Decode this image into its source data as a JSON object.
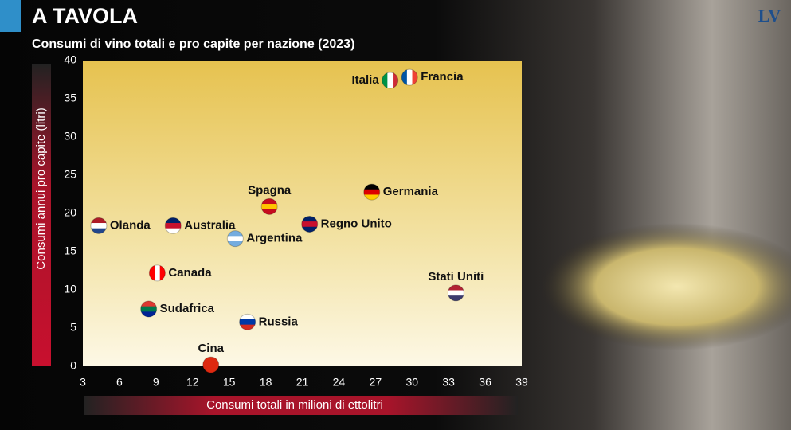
{
  "chart_data": {
    "type": "scatter",
    "title": "A TAVOLA",
    "subtitle": "Consumi di vino totali e pro capite per nazione (2023)",
    "logo": "LV",
    "x_label": "Consumi totali in milioni di ettolitri",
    "y_label": "Consumi annui pro capite (litri)",
    "xlim": [
      3,
      39
    ],
    "ylim": [
      0,
      40
    ],
    "xticks": [
      3,
      6,
      9,
      12,
      15,
      18,
      21,
      24,
      27,
      30,
      33,
      36,
      39
    ],
    "yticks": [
      0,
      5,
      10,
      15,
      20,
      25,
      30,
      35,
      40
    ],
    "grid": false,
    "points": [
      {
        "name": "Olanda",
        "x": 4.3,
        "y": 18.4,
        "colors": [
          "#ae1c28",
          "#ffffff",
          "#21468b"
        ],
        "stripes": "h",
        "label_position": "right"
      },
      {
        "name": "Australia",
        "x": 10.4,
        "y": 18.4,
        "colors": [
          "#012169",
          "#c8102e",
          "#ffffff"
        ],
        "stripes": "h",
        "label_position": "right"
      },
      {
        "name": "Argentina",
        "x": 15.5,
        "y": 16.7,
        "colors": [
          "#74acdf",
          "#ffffff",
          "#74acdf"
        ],
        "stripes": "h",
        "label_position": "right"
      },
      {
        "name": "Spagna",
        "x": 18.3,
        "y": 20.9,
        "colors": [
          "#c60b1e",
          "#ffc400",
          "#c60b1e"
        ],
        "stripes": "h",
        "label_position": "top"
      },
      {
        "name": "Regno Unito",
        "x": 21.6,
        "y": 18.6,
        "colors": [
          "#012169",
          "#c8102e",
          "#012169"
        ],
        "stripes": "h",
        "label_position": "right"
      },
      {
        "name": "Germania",
        "x": 26.7,
        "y": 22.8,
        "colors": [
          "#000000",
          "#dd0000",
          "#ffce00"
        ],
        "stripes": "h",
        "label_position": "right"
      },
      {
        "name": "Italia",
        "x": 28.2,
        "y": 37.4,
        "colors": [
          "#009246",
          "#ffffff",
          "#ce2b37"
        ],
        "stripes": "v",
        "label_position": "left"
      },
      {
        "name": "Francia",
        "x": 29.8,
        "y": 37.8,
        "colors": [
          "#0055a4",
          "#ffffff",
          "#ef4135"
        ],
        "stripes": "v",
        "label_position": "right"
      },
      {
        "name": "Stati Uniti",
        "x": 33.6,
        "y": 9.6,
        "colors": [
          "#b22234",
          "#ffffff",
          "#3c3b6e"
        ],
        "stripes": "h",
        "label_position": "top"
      },
      {
        "name": "Canada",
        "x": 9.1,
        "y": 12.2,
        "colors": [
          "#ff0000",
          "#ffffff",
          "#ff0000"
        ],
        "stripes": "v",
        "label_position": "right"
      },
      {
        "name": "Sudafrica",
        "x": 8.4,
        "y": 7.5,
        "colors": [
          "#de3831",
          "#007a4d",
          "#002395"
        ],
        "stripes": "h",
        "label_position": "right"
      },
      {
        "name": "Russia",
        "x": 16.5,
        "y": 5.8,
        "colors": [
          "#ffffff",
          "#0039a6",
          "#d52b1e"
        ],
        "stripes": "h",
        "label_position": "right"
      },
      {
        "name": "Cina",
        "x": 13.5,
        "y": 0.2,
        "colors": [
          "#de2910",
          "#de2910",
          "#de2910"
        ],
        "stripes": "h",
        "label_position": "top"
      }
    ]
  }
}
